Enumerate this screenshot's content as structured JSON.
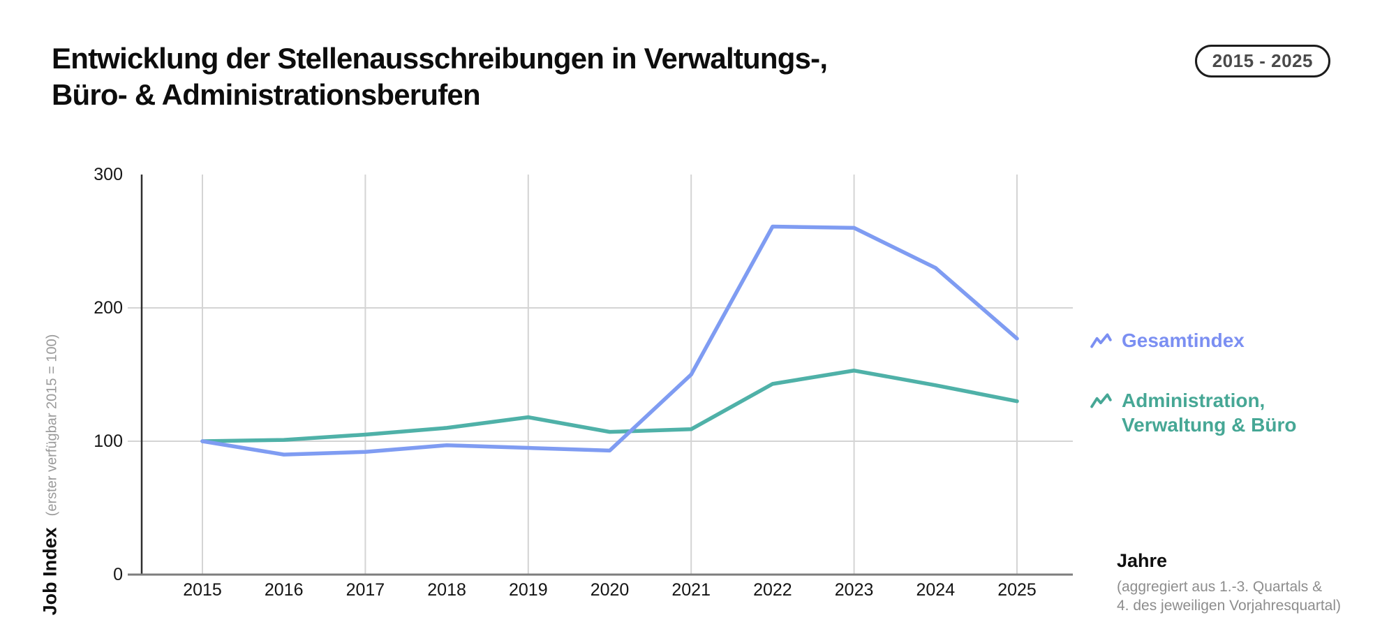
{
  "header": {
    "title": "Entwicklung der Stellenausschreibungen in Verwaltungs-,\nBüro- & Administrationsberufen",
    "period_badge": "2015 - 2025"
  },
  "y_axis": {
    "title": "Job Index",
    "subtitle": "(erster verfügbar 2015 = 100)"
  },
  "x_axis": {
    "title": "Jahre",
    "note": "(aggregiert aus 1.-3. Quartals &\n4. des jeweiligen Vorjahresquartal)"
  },
  "legend": [
    {
      "icon": "sparkline-icon",
      "label": "Gesamtindex",
      "color": "#7b8ff2"
    },
    {
      "icon": "sparkline-icon",
      "label": "Administration,\nVerwaltung & Büro",
      "color": "#46a795"
    }
  ],
  "chart_data": {
    "type": "line",
    "title": "Entwicklung der Stellenausschreibungen in Verwaltungs-, Büro- & Administrationsberufen",
    "subtitle": "2015 - 2025",
    "x": [
      2015,
      2016,
      2017,
      2018,
      2019,
      2020,
      2021,
      2022,
      2023,
      2024,
      2025
    ],
    "series": [
      {
        "name": "Gesamtindex",
        "color": "#7f9cf2",
        "values": [
          100,
          90,
          92,
          97,
          95,
          93,
          150,
          261,
          260,
          230,
          177
        ]
      },
      {
        "name": "Administration, Verwaltung & Büro",
        "color": "#4fb1a8",
        "values": [
          100,
          101,
          105,
          110,
          118,
          107,
          109,
          143,
          153,
          142,
          130
        ]
      }
    ],
    "xlabel": "Jahre",
    "ylabel": "Job Index (erster verfügbar 2015 = 100)",
    "ylim": [
      0,
      300
    ],
    "yticks": [
      0,
      100,
      200,
      300
    ],
    "grid": {
      "horizontal_at": [
        100,
        200
      ],
      "vertical_at": [
        2015,
        2017,
        2019,
        2021,
        2023,
        2025
      ]
    },
    "legend_position": "right",
    "colors": {
      "gridline": "#d4d4d4",
      "y_axis_line": "#2e2e2e",
      "x_axis_line": "#7d7d7d"
    }
  }
}
